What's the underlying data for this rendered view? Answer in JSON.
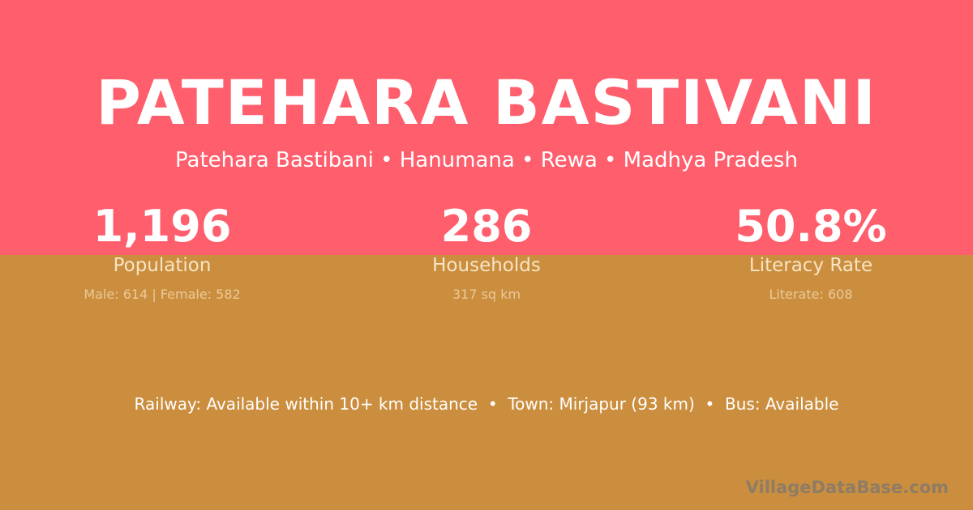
{
  "title": "PATEHARA BASTIVANI",
  "subtitle": "Patehara Bastibani • Hanumana • Rewa • Madhya Pradesh",
  "stats": [
    {
      "value": "1,196",
      "label": "Population",
      "sub": "Male: 614 | Female: 582"
    },
    {
      "value": "286",
      "label": "Households",
      "sub": "317 sq km"
    },
    {
      "value": "50.8%",
      "label": "Literacy Rate",
      "sub": "Literate: 608"
    }
  ],
  "footer": "Railway: Available within 10+ km distance  •  Town: Mirjapur (93 km)  •  Bus: Available",
  "brand": "VillageDataBase.com",
  "colors": {
    "top": "#FF5E6C",
    "bottom": "#CB8E3E"
  }
}
